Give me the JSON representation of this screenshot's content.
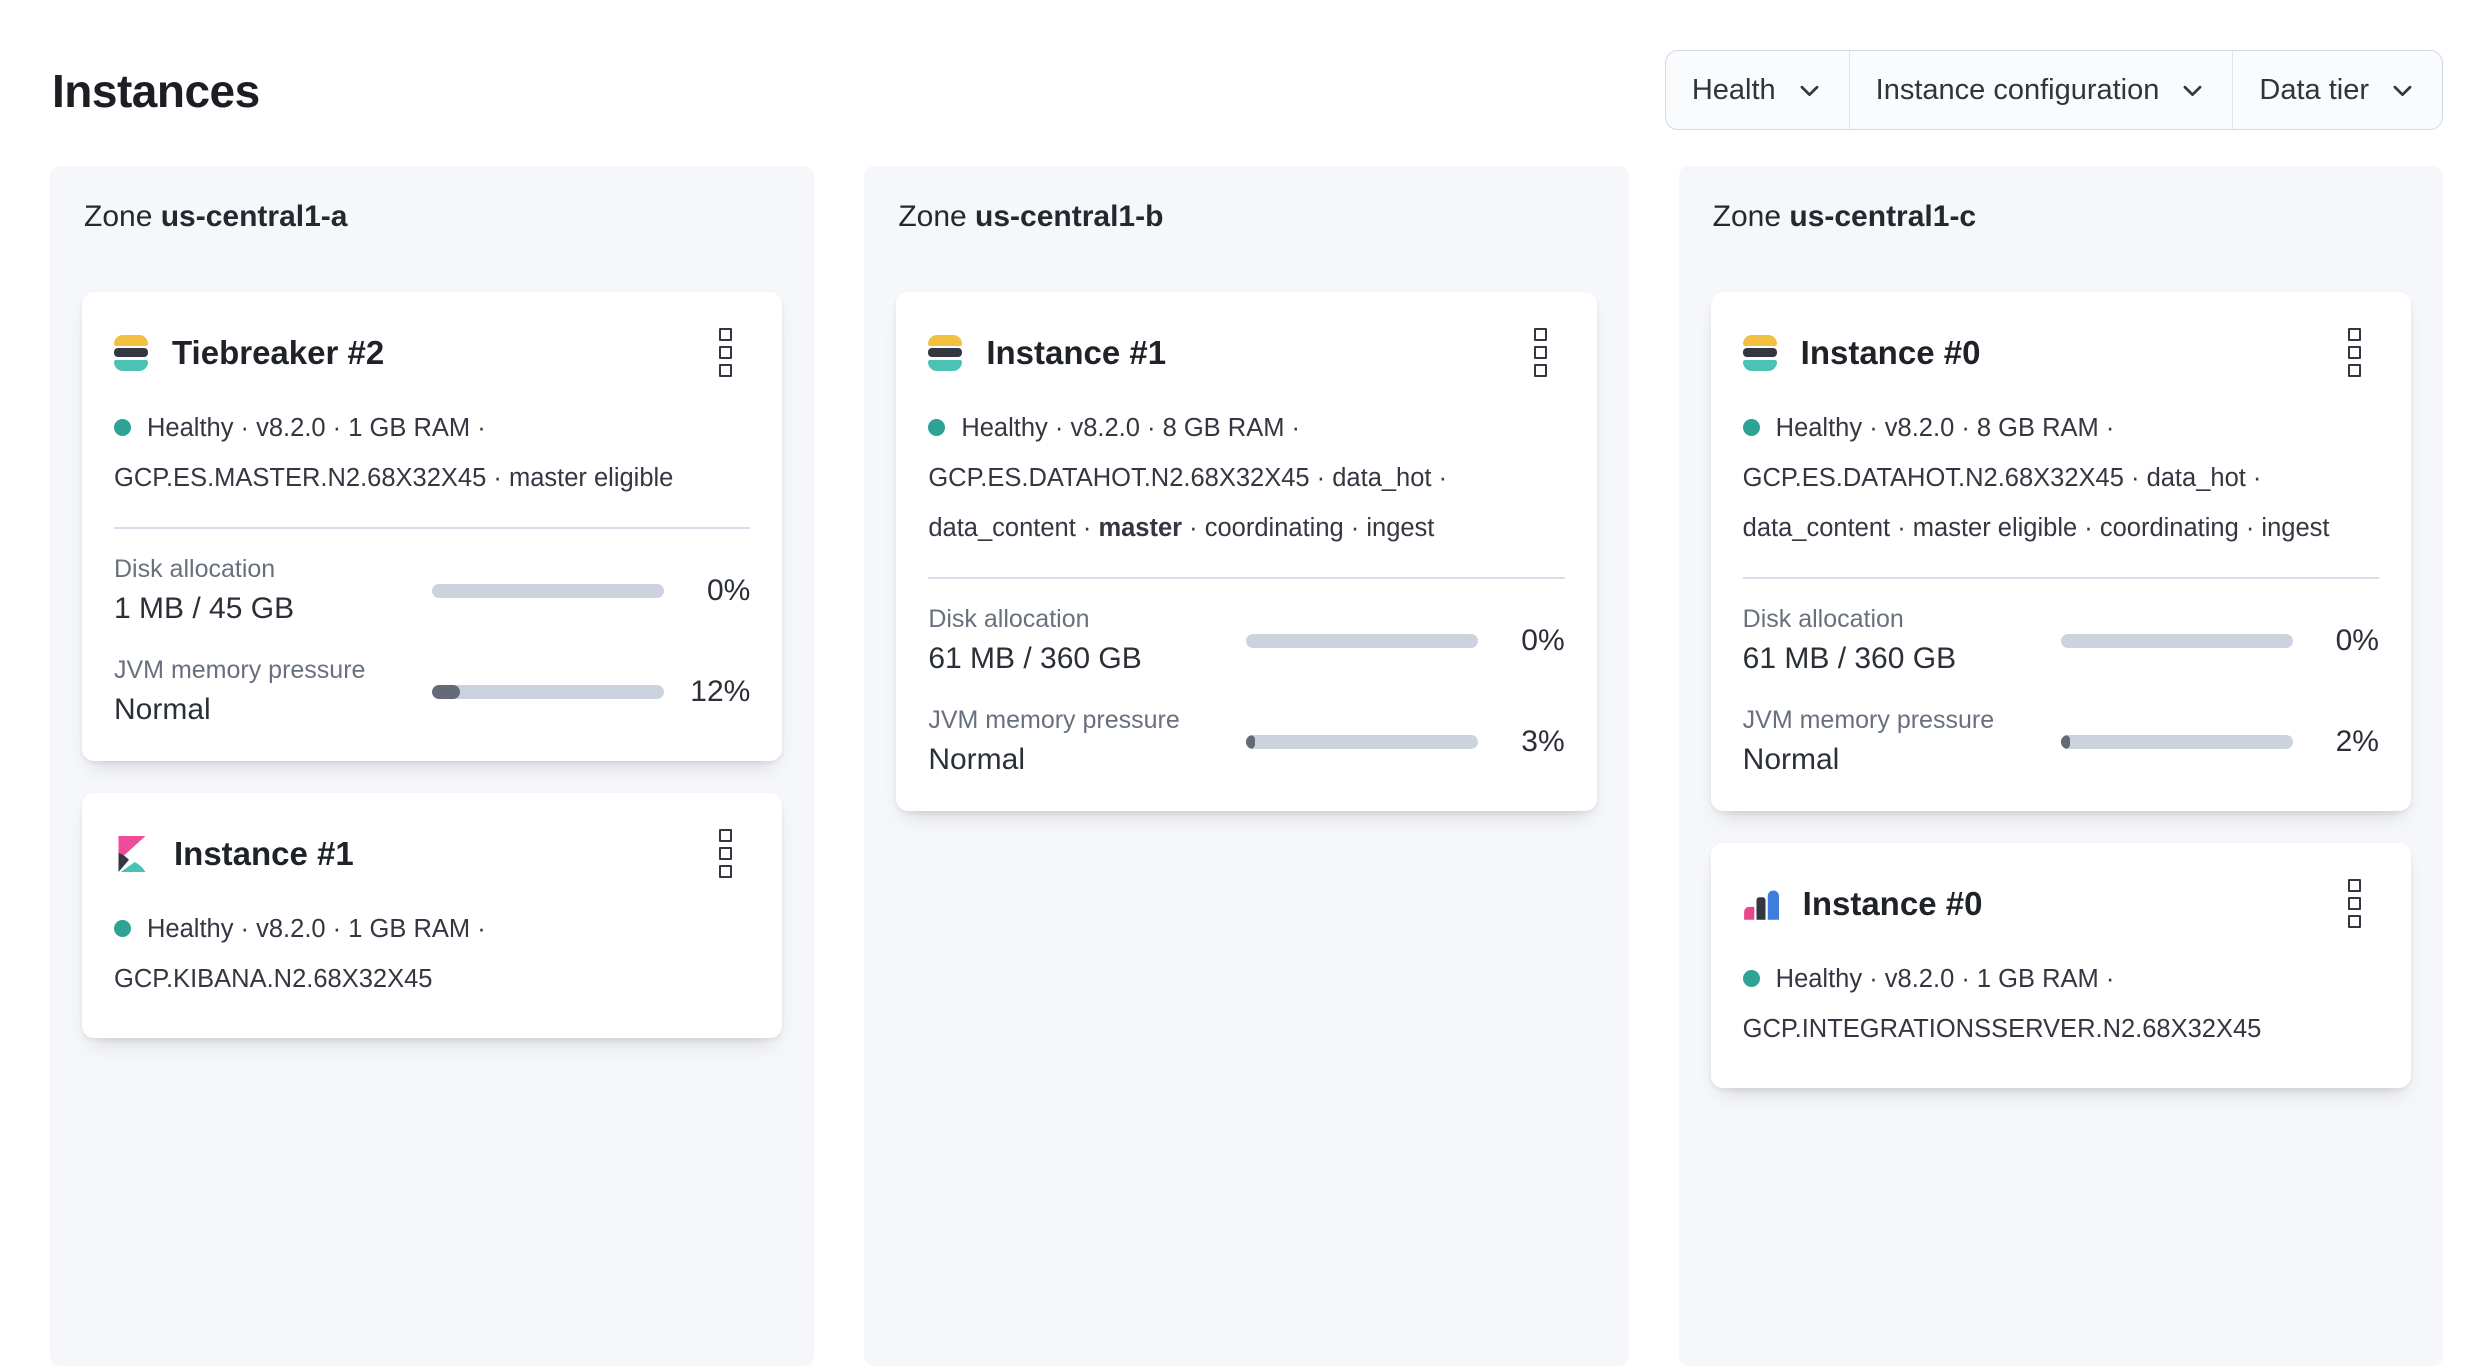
{
  "page": {
    "title": "Instances"
  },
  "filters": [
    {
      "label": "Health"
    },
    {
      "label": "Instance configuration"
    },
    {
      "label": "Data tier"
    }
  ],
  "colors": {
    "health_dot": "#2ea294",
    "bar_track": "#cdd3de",
    "bar_fill": "#646b76",
    "es_yellow": "#f3c13f",
    "es_dark": "#343741",
    "es_teal": "#4cc2b4",
    "kibana_pink": "#ee4c98",
    "integrations_pink": "#e8478b",
    "integrations_blue": "#3d7ddb",
    "panel_bg": "#f6f7fa"
  },
  "zones": [
    {
      "zone_label": "Zone",
      "zone_name": "us-central1-a",
      "cards": [
        {
          "logo": "elasticsearch",
          "title": "Tiebreaker #2",
          "meta_lines": [
            [
              {
                "text": "Healthy",
                "dot": true
              },
              {
                "text": " · v8.2.0 · 1 GB RAM ·"
              }
            ],
            [
              {
                "text": "GCP.ES.MASTER.N2.68X32X45 · master eligible"
              }
            ]
          ],
          "metrics": [
            {
              "label": "Disk allocation",
              "value": "1 MB / 45 GB",
              "percent": 0,
              "percent_label": "0%"
            },
            {
              "label": "JVM memory pressure",
              "value": "Normal",
              "percent": 12,
              "percent_label": "12%"
            }
          ]
        },
        {
          "logo": "kibana",
          "title": "Instance #1",
          "meta_lines": [
            [
              {
                "text": "Healthy",
                "dot": true
              },
              {
                "text": " · v8.2.0 · 1 GB RAM ·"
              }
            ],
            [
              {
                "text": "GCP.KIBANA.N2.68X32X45"
              }
            ]
          ],
          "metrics": []
        }
      ]
    },
    {
      "zone_label": "Zone",
      "zone_name": "us-central1-b",
      "cards": [
        {
          "logo": "elasticsearch",
          "title": "Instance #1",
          "meta_lines": [
            [
              {
                "text": "Healthy",
                "dot": true
              },
              {
                "text": " · v8.2.0 · 8 GB RAM ·"
              }
            ],
            [
              {
                "text": "GCP.ES.DATAHOT.N2.68X32X45 · data_hot ·"
              }
            ],
            [
              {
                "text": "data_content · "
              },
              {
                "text": "master",
                "bold": true
              },
              {
                "text": " · coordinating · ingest"
              }
            ]
          ],
          "metrics": [
            {
              "label": "Disk allocation",
              "value": "61 MB / 360 GB",
              "percent": 0,
              "percent_label": "0%"
            },
            {
              "label": "JVM memory pressure",
              "value": "Normal",
              "percent": 3,
              "percent_label": "3%"
            }
          ]
        }
      ]
    },
    {
      "zone_label": "Zone",
      "zone_name": "us-central1-c",
      "cards": [
        {
          "logo": "elasticsearch",
          "title": "Instance #0",
          "meta_lines": [
            [
              {
                "text": "Healthy",
                "dot": true
              },
              {
                "text": " · v8.2.0 · 8 GB RAM ·"
              }
            ],
            [
              {
                "text": "GCP.ES.DATAHOT.N2.68X32X45 · data_hot ·"
              }
            ],
            [
              {
                "text": "data_content · master eligible · coordinating · ingest"
              }
            ]
          ],
          "metrics": [
            {
              "label": "Disk allocation",
              "value": "61 MB / 360 GB",
              "percent": 0,
              "percent_label": "0%"
            },
            {
              "label": "JVM memory pressure",
              "value": "Normal",
              "percent": 2,
              "percent_label": "2%"
            }
          ]
        },
        {
          "logo": "integrations-server",
          "title": "Instance #0",
          "meta_lines": [
            [
              {
                "text": "Healthy",
                "dot": true
              },
              {
                "text": " · v8.2.0 · 1 GB RAM ·"
              }
            ],
            [
              {
                "text": "GCP.INTEGRATIONSSERVER.N2.68X32X45"
              }
            ]
          ],
          "metrics": []
        }
      ]
    }
  ]
}
